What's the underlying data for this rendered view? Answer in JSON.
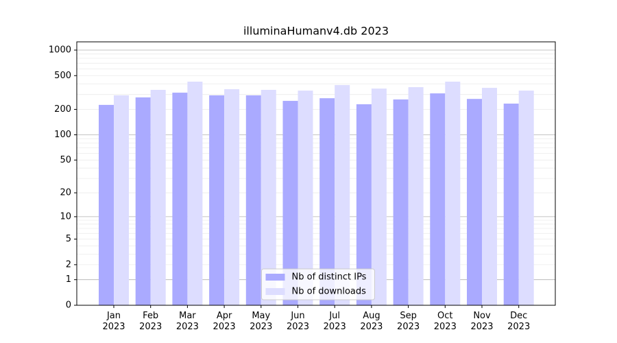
{
  "chart_data": {
    "type": "bar",
    "title": "illuminaHumanv4.db 2023",
    "categories": [
      "Jan\n2023",
      "Feb\n2023",
      "Mar\n2023",
      "Apr\n2023",
      "May\n2023",
      "Jun\n2023",
      "Jul\n2023",
      "Aug\n2023",
      "Sep\n2023",
      "Oct\n2023",
      "Nov\n2023",
      "Dec\n2023"
    ],
    "series": [
      {
        "name": "Nb of distinct IPs",
        "color": "#aaaaff",
        "values": [
          226,
          277,
          315,
          293,
          293,
          252,
          271,
          230,
          262,
          309,
          266,
          234
        ]
      },
      {
        "name": "Nb of downloads",
        "color": "#ddddff",
        "values": [
          293,
          340,
          425,
          346,
          340,
          333,
          387,
          352,
          366,
          425,
          359,
          333
        ]
      }
    ],
    "yscale": "log1p",
    "ylim": [
      0,
      1250
    ],
    "yticks": [
      0,
      1,
      2,
      5,
      10,
      20,
      50,
      100,
      200,
      500,
      1000
    ],
    "yticks_major_grid": [
      1,
      10,
      100,
      1000
    ],
    "yticks_minor_grid": [
      2,
      3,
      4,
      5,
      6,
      7,
      8,
      9,
      20,
      30,
      40,
      50,
      60,
      70,
      80,
      90,
      200,
      300,
      400,
      500,
      600,
      700,
      800,
      900
    ],
    "grid": true,
    "legend": "lower center"
  }
}
